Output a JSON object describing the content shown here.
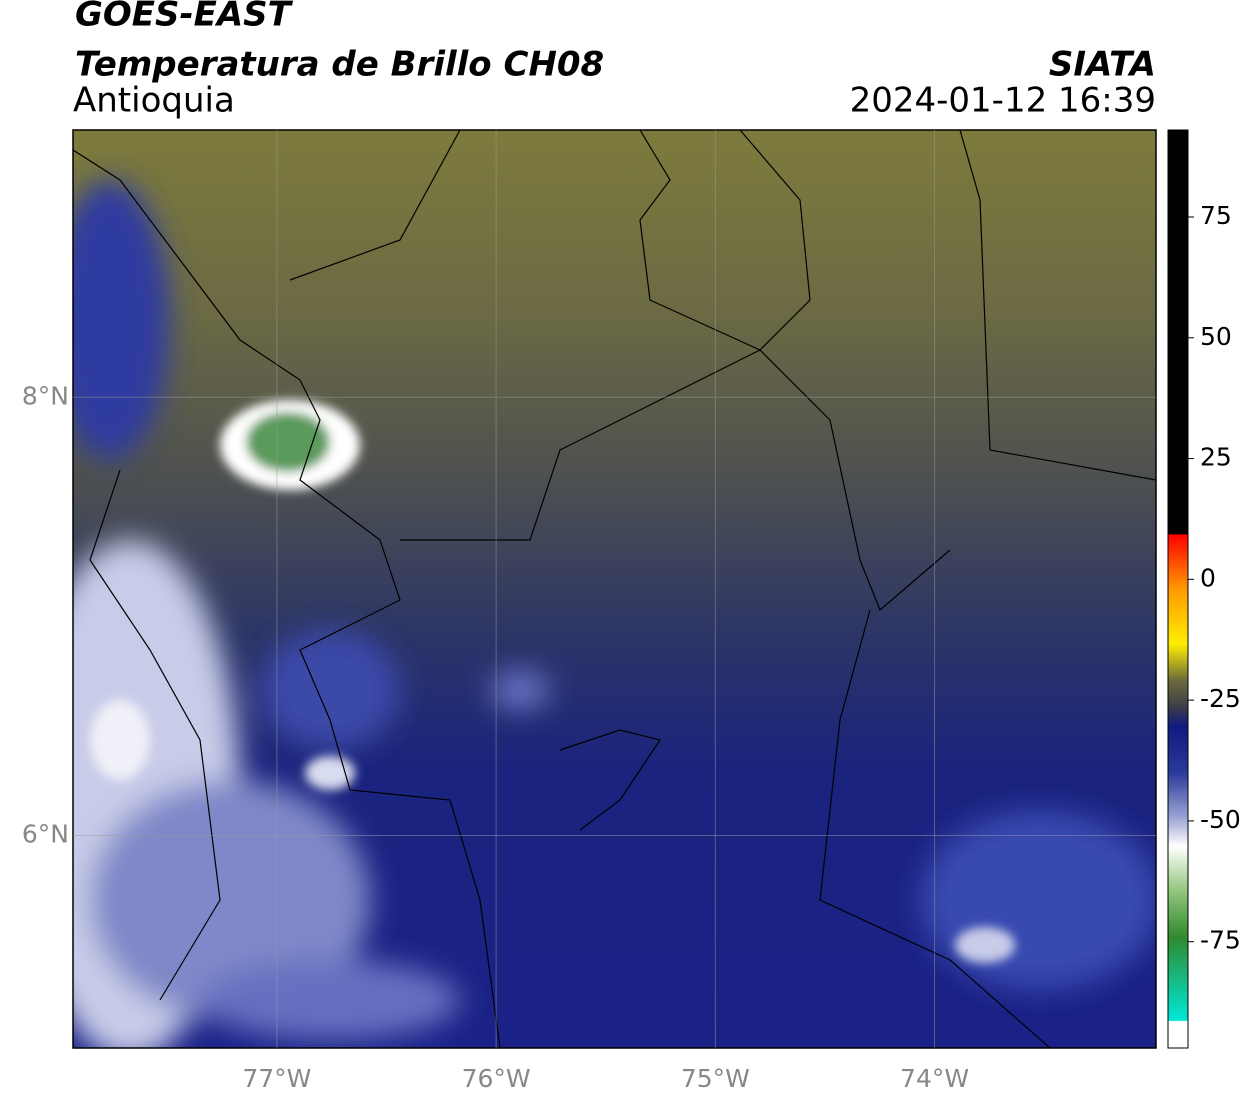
{
  "header": {
    "title": "GOES-EAST",
    "subtitle": "Temperatura de Brillo CH08",
    "region": "Antioquia",
    "source": "SIATA",
    "datetime": "2024-01-12 16:39"
  },
  "map": {
    "xlim": [
      -77.93,
      -72.99
    ],
    "ylim": [
      5.03,
      9.22
    ],
    "xticks": [
      {
        "value": -77,
        "label": "77°W"
      },
      {
        "value": -76,
        "label": "76°W"
      },
      {
        "value": -75,
        "label": "75°W"
      },
      {
        "value": -74,
        "label": "74°W"
      }
    ],
    "yticks": [
      {
        "value": 6,
        "label": "6°N"
      },
      {
        "value": 8,
        "label": "8°N"
      }
    ],
    "grid": true
  },
  "colorbar": {
    "ylim": [
      -97,
      93
    ],
    "yticks": [
      75,
      50,
      25,
      0,
      -25,
      -50,
      -75
    ]
  }
}
